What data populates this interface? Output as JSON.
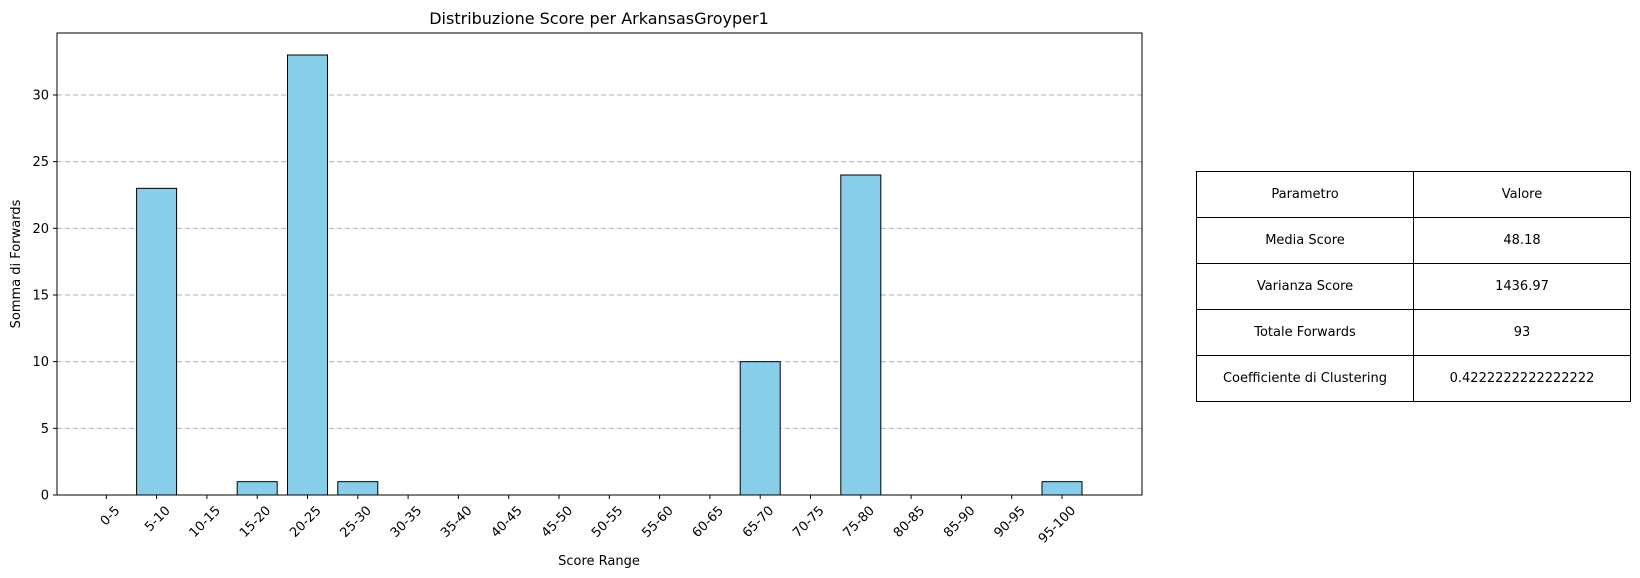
{
  "chart_data": {
    "type": "bar",
    "title": "Distribuzione Score per ArkansasGroyper1",
    "xlabel": "Score Range",
    "ylabel": "Somma di Forwards",
    "categories": [
      "0-5",
      "5-10",
      "10-15",
      "15-20",
      "20-25",
      "25-30",
      "30-35",
      "35-40",
      "40-45",
      "45-50",
      "50-55",
      "55-60",
      "60-65",
      "65-70",
      "70-75",
      "75-80",
      "80-85",
      "85-90",
      "90-95",
      "95-100"
    ],
    "values": [
      0,
      23,
      0,
      1,
      33,
      1,
      0,
      0,
      0,
      0,
      0,
      0,
      0,
      10,
      0,
      24,
      0,
      0,
      0,
      1
    ],
    "ylim": [
      0,
      34.65
    ],
    "yticks": [
      0,
      5,
      10,
      15,
      20,
      25,
      30
    ],
    "grid": "y-dashed",
    "bar_color": "#87ceeb",
    "edge_color": "#000000"
  },
  "table": {
    "header": [
      "Parametro",
      "Valore"
    ],
    "rows": [
      [
        "Media Score",
        "48.18"
      ],
      [
        "Varianza Score",
        "1436.97"
      ],
      [
        "Totale Forwards",
        "93"
      ],
      [
        "Coefficiente di Clustering",
        "0.4222222222222222"
      ]
    ]
  }
}
